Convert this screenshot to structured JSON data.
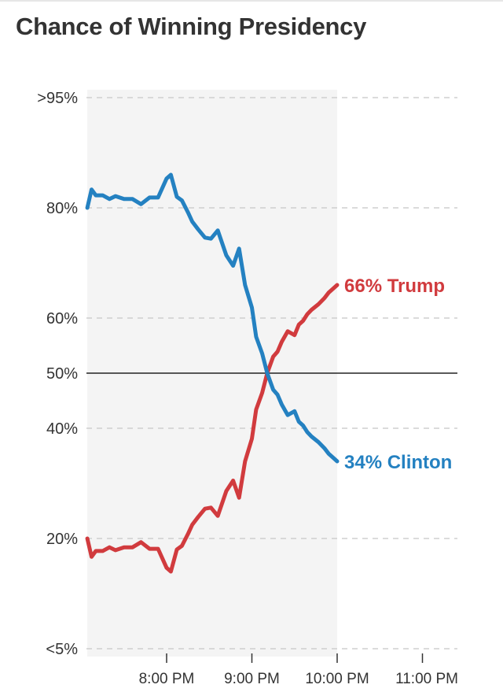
{
  "chart_data": {
    "type": "line",
    "title": "Chance of Winning Presidency",
    "y_tick_labels": [
      ">95%",
      "80%",
      "60%",
      "50%",
      "40%",
      "20%",
      "<5%"
    ],
    "y_tick_values": [
      95,
      80,
      60,
      50,
      40,
      20,
      5
    ],
    "x_tick_labels": [
      "8:00 PM",
      "9:00 PM",
      "10:00 PM",
      "11:00 PM"
    ],
    "x_tick_values": [
      20.0,
      21.0,
      22.0,
      23.0
    ],
    "xlim": [
      19.07,
      23.4
    ],
    "ylim": [
      5,
      95
    ],
    "reference_line": 50,
    "shaded_region_x": [
      19.07,
      22.0
    ],
    "grid": "horizontal dashed",
    "series": [
      {
        "name": "Trump",
        "end_label": "66% Trump",
        "color": "#d13b3e",
        "x": [
          19.07,
          19.12,
          19.17,
          19.25,
          19.33,
          19.4,
          19.5,
          19.6,
          19.7,
          19.8,
          19.9,
          20.0,
          20.05,
          20.12,
          20.18,
          20.25,
          20.3,
          20.37,
          20.45,
          20.52,
          20.6,
          20.7,
          20.78,
          20.85,
          20.92,
          21.0,
          21.05,
          21.12,
          21.18,
          21.25,
          21.3,
          21.35,
          21.42,
          21.5,
          21.55,
          21.6,
          21.65,
          21.7,
          21.78,
          21.85,
          21.9,
          21.95,
          22.0
        ],
        "values": [
          20,
          17.5,
          18.3,
          18.3,
          18.8,
          18.4,
          18.8,
          18.8,
          19.5,
          18.6,
          18.6,
          16.0,
          15.5,
          18.5,
          19.0,
          20.8,
          22.5,
          23.9,
          25.4,
          25.6,
          24.1,
          28.6,
          30.5,
          27.4,
          34.0,
          38.1,
          43.4,
          46.4,
          50.0,
          53.0,
          53.9,
          55.7,
          57.6,
          56.9,
          58.8,
          59.5,
          60.7,
          61.5,
          62.5,
          63.6,
          64.6,
          65.3,
          66
        ]
      },
      {
        "name": "Clinton",
        "end_label": "34% Clinton",
        "color": "#2481c1",
        "x": [
          19.07,
          19.12,
          19.17,
          19.25,
          19.33,
          19.4,
          19.5,
          19.6,
          19.7,
          19.8,
          19.9,
          20.0,
          20.05,
          20.12,
          20.18,
          20.25,
          20.3,
          20.37,
          20.45,
          20.52,
          20.6,
          20.7,
          20.78,
          20.85,
          20.92,
          21.0,
          21.05,
          21.12,
          21.18,
          21.25,
          21.3,
          21.35,
          21.42,
          21.5,
          21.55,
          21.6,
          21.65,
          21.7,
          21.78,
          21.85,
          21.9,
          21.95,
          22.0
        ],
        "values": [
          80,
          82.5,
          81.7,
          81.7,
          81.2,
          81.6,
          81.2,
          81.2,
          80.5,
          81.4,
          81.4,
          84.0,
          84.5,
          81.5,
          81.0,
          79.2,
          77.5,
          76.1,
          74.6,
          74.4,
          75.9,
          71.4,
          69.5,
          72.6,
          66.0,
          61.9,
          56.6,
          53.6,
          50.0,
          47.0,
          46.1,
          44.3,
          42.4,
          43.1,
          41.2,
          40.5,
          39.3,
          38.5,
          37.5,
          36.4,
          35.4,
          34.7,
          34
        ]
      }
    ]
  }
}
